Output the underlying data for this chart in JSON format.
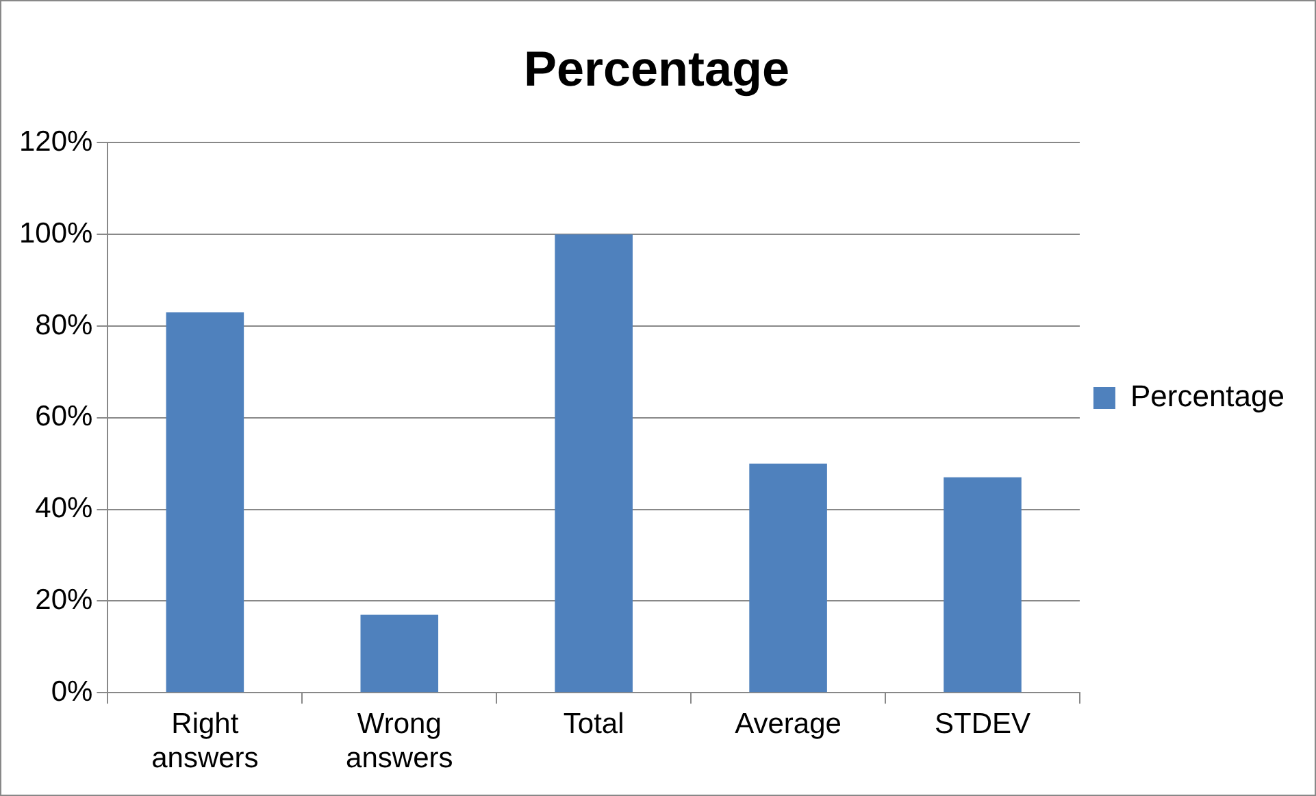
{
  "chart_data": {
    "type": "bar",
    "title": "Percentage",
    "categories": [
      "Right answers",
      "Wrong answers",
      "Total",
      "Average",
      "STDEV"
    ],
    "series": [
      {
        "name": "Percentage",
        "color": "#4f81bd",
        "values": [
          83,
          17,
          100,
          50,
          47
        ]
      }
    ],
    "ylim": [
      0,
      120
    ],
    "yticks": [
      {
        "value": 0,
        "label": "0%"
      },
      {
        "value": 20,
        "label": "20%"
      },
      {
        "value": 40,
        "label": "40%"
      },
      {
        "value": 60,
        "label": "60%"
      },
      {
        "value": 80,
        "label": "80%"
      },
      {
        "value": 100,
        "label": "100%"
      },
      {
        "value": 120,
        "label": "120%"
      }
    ],
    "grid": "y",
    "legend": "right"
  }
}
